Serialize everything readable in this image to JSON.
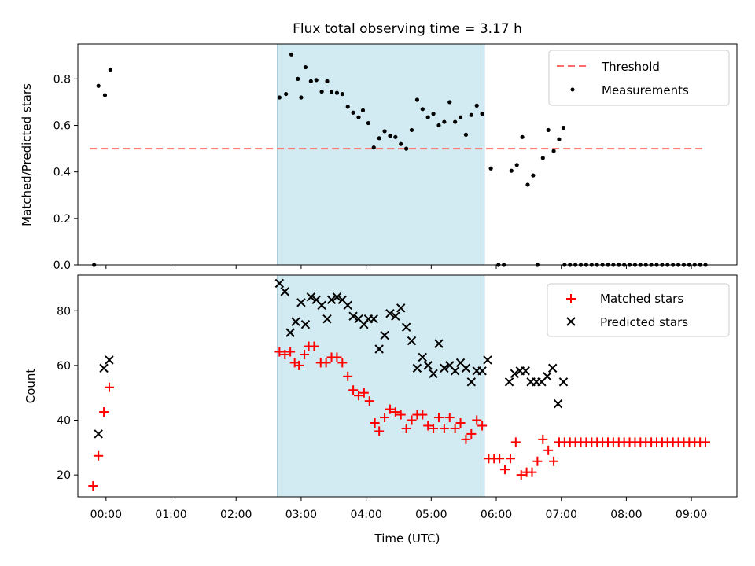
{
  "figure": {
    "title": "Flux total observing time = 3.17 h"
  },
  "chart_data": [
    {
      "type": "scatter",
      "panel": "top",
      "ylabel": "Matched/Predicted stars",
      "xlabel": "",
      "xlim": [
        "23:34",
        "09:42"
      ],
      "ylim": [
        0,
        0.95
      ],
      "yticks": [
        "0.0",
        "0.2",
        "0.4",
        "0.6",
        "0.8"
      ],
      "grid": false,
      "legend_position": "upper right",
      "shaded_span": {
        "start": "02:38",
        "end": "05:49",
        "color": "#add8e6"
      },
      "threshold": {
        "label": "Threshold",
        "value": 0.5,
        "x_start": "23:45",
        "x_end": "09:10",
        "color": "#ff6a6a"
      },
      "measurements": {
        "label": "Measurements",
        "color": "#000000",
        "points": [
          [
            "23:49",
            0.0
          ],
          [
            "23:53",
            0.77
          ],
          [
            "23:59",
            0.73
          ],
          [
            "00:04",
            0.84
          ],
          [
            "02:40",
            0.72
          ],
          [
            "02:46",
            0.735
          ],
          [
            "02:51",
            0.905
          ],
          [
            "02:57",
            0.8
          ],
          [
            "03:00",
            0.72
          ],
          [
            "03:04",
            0.85
          ],
          [
            "03:09",
            0.79
          ],
          [
            "03:14",
            0.795
          ],
          [
            "03:19",
            0.745
          ],
          [
            "03:24",
            0.79
          ],
          [
            "03:28",
            0.745
          ],
          [
            "03:33",
            0.74
          ],
          [
            "03:38",
            0.735
          ],
          [
            "03:43",
            0.68
          ],
          [
            "03:48",
            0.655
          ],
          [
            "03:53",
            0.635
          ],
          [
            "03:57",
            0.665
          ],
          [
            "04:02",
            0.61
          ],
          [
            "04:07",
            0.505
          ],
          [
            "04:12",
            0.545
          ],
          [
            "04:17",
            0.575
          ],
          [
            "04:22",
            0.555
          ],
          [
            "04:27",
            0.55
          ],
          [
            "04:32",
            0.52
          ],
          [
            "04:37",
            0.5
          ],
          [
            "04:42",
            0.58
          ],
          [
            "04:47",
            0.71
          ],
          [
            "04:52",
            0.67
          ],
          [
            "04:57",
            0.635
          ],
          [
            "05:02",
            0.65
          ],
          [
            "05:07",
            0.6
          ],
          [
            "05:12",
            0.615
          ],
          [
            "05:17",
            0.7
          ],
          [
            "05:22",
            0.615
          ],
          [
            "05:27",
            0.635
          ],
          [
            "05:32",
            0.56
          ],
          [
            "05:37",
            0.645
          ],
          [
            "05:42",
            0.685
          ],
          [
            "05:47",
            0.65
          ],
          [
            "05:55",
            0.415
          ],
          [
            "06:02",
            0.0
          ],
          [
            "06:07",
            0.0
          ],
          [
            "06:14",
            0.405
          ],
          [
            "06:19",
            0.43
          ],
          [
            "06:24",
            0.55
          ],
          [
            "06:29",
            0.345
          ],
          [
            "06:34",
            0.385
          ],
          [
            "06:38",
            0.0
          ],
          [
            "06:43",
            0.46
          ],
          [
            "06:48",
            0.58
          ],
          [
            "06:53",
            0.49
          ],
          [
            "06:58",
            0.54
          ],
          [
            "07:02",
            0.59
          ],
          [
            "07:03",
            0.0
          ],
          [
            "07:08",
            0.0
          ],
          [
            "07:13",
            0.0
          ],
          [
            "07:18",
            0.0
          ],
          [
            "07:23",
            0.0
          ],
          [
            "07:28",
            0.0
          ],
          [
            "07:33",
            0.0
          ],
          [
            "07:38",
            0.0
          ],
          [
            "07:43",
            0.0
          ],
          [
            "07:48",
            0.0
          ],
          [
            "07:53",
            0.0
          ],
          [
            "07:58",
            0.0
          ],
          [
            "08:03",
            0.0
          ],
          [
            "08:08",
            0.0
          ],
          [
            "08:13",
            0.0
          ],
          [
            "08:18",
            0.0
          ],
          [
            "08:23",
            0.0
          ],
          [
            "08:28",
            0.0
          ],
          [
            "08:33",
            0.0
          ],
          [
            "08:38",
            0.0
          ],
          [
            "08:43",
            0.0
          ],
          [
            "08:48",
            0.0
          ],
          [
            "08:53",
            0.0
          ],
          [
            "08:58",
            0.0
          ],
          [
            "09:03",
            0.0
          ],
          [
            "09:08",
            0.0
          ],
          [
            "09:13",
            0.0
          ]
        ]
      }
    },
    {
      "type": "scatter",
      "panel": "bottom",
      "ylabel": "Count",
      "xlabel": "Time (UTC)",
      "xlim": [
        "23:34",
        "09:42"
      ],
      "ylim": [
        12,
        93
      ],
      "yticks": [
        "20",
        "40",
        "60",
        "80"
      ],
      "xticks": [
        "00:00",
        "01:00",
        "02:00",
        "03:00",
        "04:00",
        "05:00",
        "06:00",
        "07:00",
        "08:00",
        "09:00"
      ],
      "grid": false,
      "legend_position": "upper right",
      "shaded_span": {
        "start": "02:38",
        "end": "05:49",
        "color": "#add8e6"
      },
      "series": [
        {
          "name": "Matched stars",
          "marker": "+",
          "color": "#ff0000",
          "points": [
            [
              "23:48",
              16
            ],
            [
              "23:53",
              27
            ],
            [
              "23:58",
              43
            ],
            [
              "00:03",
              52
            ],
            [
              "02:40",
              65
            ],
            [
              "02:45",
              64
            ],
            [
              "02:50",
              65
            ],
            [
              "02:54",
              61
            ],
            [
              "02:58",
              60
            ],
            [
              "03:03",
              64
            ],
            [
              "03:07",
              67
            ],
            [
              "03:12",
              67
            ],
            [
              "03:18",
              61
            ],
            [
              "03:23",
              61
            ],
            [
              "03:28",
              63
            ],
            [
              "03:33",
              63
            ],
            [
              "03:38",
              61
            ],
            [
              "03:43",
              56
            ],
            [
              "03:48",
              51
            ],
            [
              "03:53",
              49
            ],
            [
              "03:58",
              50
            ],
            [
              "04:03",
              47
            ],
            [
              "04:08",
              39
            ],
            [
              "04:12",
              36
            ],
            [
              "04:17",
              41
            ],
            [
              "04:22",
              44
            ],
            [
              "04:27",
              43
            ],
            [
              "04:32",
              42
            ],
            [
              "04:37",
              37
            ],
            [
              "04:42",
              40
            ],
            [
              "04:47",
              42
            ],
            [
              "04:52",
              42
            ],
            [
              "04:57",
              38
            ],
            [
              "05:02",
              37
            ],
            [
              "05:07",
              41
            ],
            [
              "05:12",
              37
            ],
            [
              "05:17",
              41
            ],
            [
              "05:22",
              37
            ],
            [
              "05:27",
              39
            ],
            [
              "05:32",
              33
            ],
            [
              "05:37",
              35
            ],
            [
              "05:42",
              40
            ],
            [
              "05:47",
              38
            ],
            [
              "05:53",
              26
            ],
            [
              "05:58",
              26
            ],
            [
              "06:03",
              26
            ],
            [
              "06:08",
              22
            ],
            [
              "06:13",
              26
            ],
            [
              "06:18",
              32
            ],
            [
              "06:23",
              20
            ],
            [
              "06:28",
              21
            ],
            [
              "06:33",
              21
            ],
            [
              "06:38",
              25
            ],
            [
              "06:43",
              33
            ],
            [
              "06:48",
              29
            ],
            [
              "06:53",
              25
            ],
            [
              "06:58",
              32
            ],
            [
              "07:03",
              32
            ],
            [
              "07:08",
              32
            ],
            [
              "07:13",
              32
            ],
            [
              "07:18",
              32
            ],
            [
              "07:23",
              32
            ],
            [
              "07:28",
              32
            ],
            [
              "07:33",
              32
            ],
            [
              "07:38",
              32
            ],
            [
              "07:43",
              32
            ],
            [
              "07:48",
              32
            ],
            [
              "07:53",
              32
            ],
            [
              "07:58",
              32
            ],
            [
              "08:03",
              32
            ],
            [
              "08:08",
              32
            ],
            [
              "08:13",
              32
            ],
            [
              "08:18",
              32
            ],
            [
              "08:23",
              32
            ],
            [
              "08:28",
              32
            ],
            [
              "08:33",
              32
            ],
            [
              "08:38",
              32
            ],
            [
              "08:43",
              32
            ],
            [
              "08:48",
              32
            ],
            [
              "08:53",
              32
            ],
            [
              "08:58",
              32
            ],
            [
              "09:03",
              32
            ],
            [
              "09:08",
              32
            ],
            [
              "09:13",
              32
            ]
          ]
        },
        {
          "name": "Predicted stars",
          "marker": "x",
          "color": "#000000",
          "points": [
            [
              "23:53",
              35
            ],
            [
              "23:58",
              59
            ],
            [
              "00:03",
              62
            ],
            [
              "02:40",
              90
            ],
            [
              "02:45",
              87
            ],
            [
              "02:50",
              72
            ],
            [
              "02:55",
              76
            ],
            [
              "03:00",
              83
            ],
            [
              "03:04",
              75
            ],
            [
              "03:09",
              85
            ],
            [
              "03:14",
              84
            ],
            [
              "03:19",
              82
            ],
            [
              "03:24",
              77
            ],
            [
              "03:28",
              84
            ],
            [
              "03:33",
              85
            ],
            [
              "03:38",
              84
            ],
            [
              "03:43",
              82
            ],
            [
              "03:48",
              78
            ],
            [
              "03:53",
              77
            ],
            [
              "03:58",
              75
            ],
            [
              "04:02",
              77
            ],
            [
              "04:07",
              77
            ],
            [
              "04:12",
              66
            ],
            [
              "04:17",
              71
            ],
            [
              "04:22",
              79
            ],
            [
              "04:27",
              78
            ],
            [
              "04:32",
              81
            ],
            [
              "04:37",
              74
            ],
            [
              "04:42",
              69
            ],
            [
              "04:47",
              59
            ],
            [
              "04:52",
              63
            ],
            [
              "04:57",
              60
            ],
            [
              "05:02",
              57
            ],
            [
              "05:07",
              68
            ],
            [
              "05:12",
              59
            ],
            [
              "05:17",
              60
            ],
            [
              "05:22",
              58
            ],
            [
              "05:27",
              61
            ],
            [
              "05:32",
              59
            ],
            [
              "05:37",
              54
            ],
            [
              "05:42",
              58
            ],
            [
              "05:47",
              58
            ],
            [
              "05:52",
              62
            ],
            [
              "06:12",
              54
            ],
            [
              "06:17",
              57
            ],
            [
              "06:22",
              58
            ],
            [
              "06:27",
              58
            ],
            [
              "06:32",
              54
            ],
            [
              "06:37",
              54
            ],
            [
              "06:42",
              54
            ],
            [
              "06:47",
              56
            ],
            [
              "06:52",
              59
            ],
            [
              "06:57",
              46
            ],
            [
              "07:02",
              54
            ]
          ]
        }
      ]
    }
  ]
}
